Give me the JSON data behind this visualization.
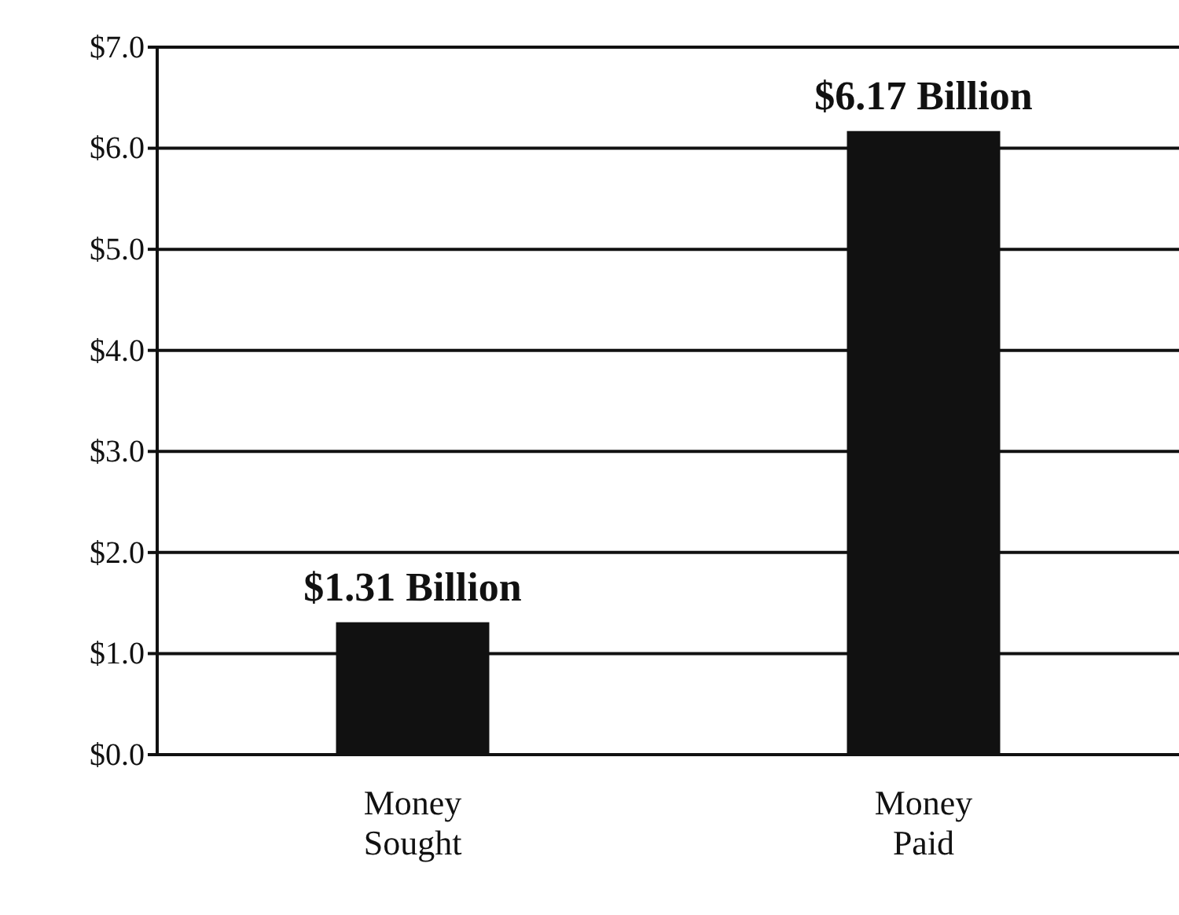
{
  "chart_data": {
    "type": "bar",
    "categories": [
      "Money Sought",
      "Money Paid"
    ],
    "values": [
      1.31,
      6.17
    ],
    "value_labels": [
      "$1.31 Billion",
      "$6.17 Billion"
    ],
    "color": "#111111",
    "ylim": [
      0,
      7
    ],
    "yticks": [
      {
        "value": 0,
        "label": "$0.0"
      },
      {
        "value": 1,
        "label": "$1.0"
      },
      {
        "value": 2,
        "label": "$2.0"
      },
      {
        "value": 3,
        "label": "$3.0"
      },
      {
        "value": 4,
        "label": "$4.0"
      },
      {
        "value": 5,
        "label": "$5.0"
      },
      {
        "value": 6,
        "label": "$6.0"
      },
      {
        "value": 7,
        "label": "$7.0"
      }
    ],
    "grid": "y"
  }
}
